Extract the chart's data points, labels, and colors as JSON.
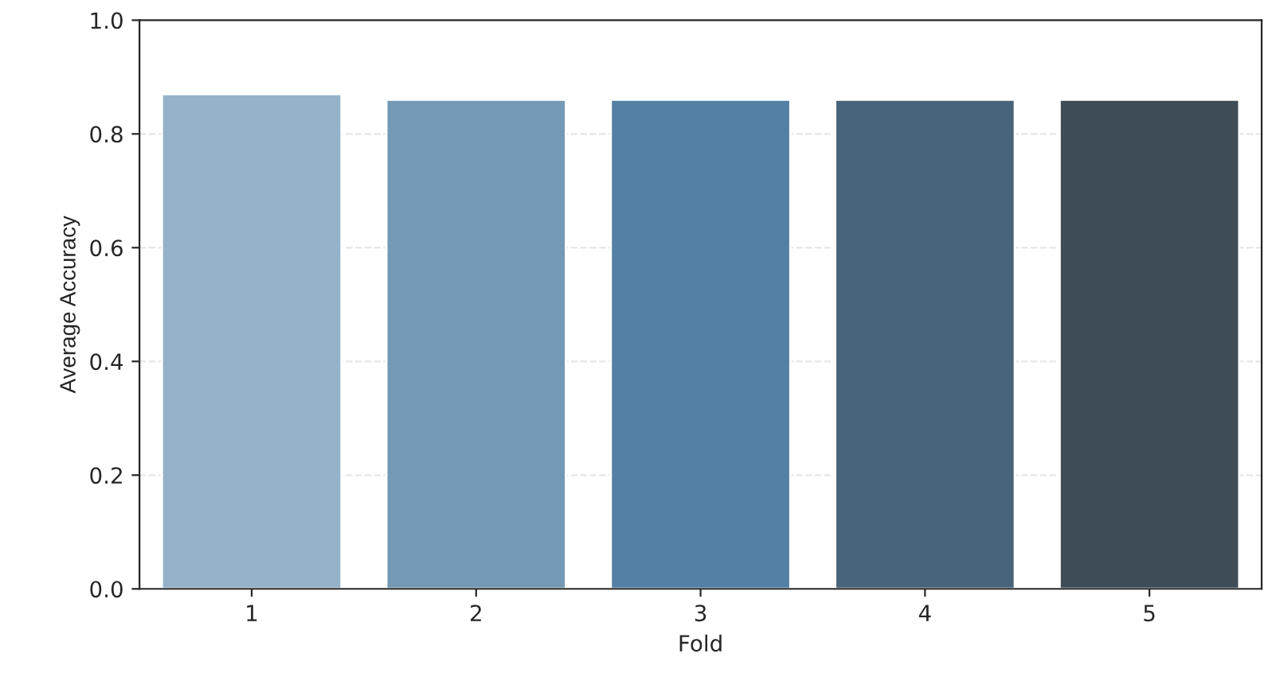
{
  "chart_data": {
    "type": "bar",
    "xlabel": "Fold",
    "ylabel": "Average Accuracy",
    "categories": [
      "1",
      "2",
      "3",
      "4",
      "5"
    ],
    "values": [
      0.87,
      0.86,
      0.86,
      0.86,
      0.86
    ],
    "colors": [
      "#8db3d0",
      "#6a9bc0",
      "#4682b1",
      "#3f6584",
      "#3a4d5c"
    ],
    "ylim": [
      0,
      1
    ],
    "yticks": [
      {
        "value": 0,
        "label": "0.0"
      },
      0.2,
      0.4,
      0.6,
      0.8,
      {
        "value": 1,
        "label": "1.0"
      }
    ],
    "grid": "y"
  }
}
